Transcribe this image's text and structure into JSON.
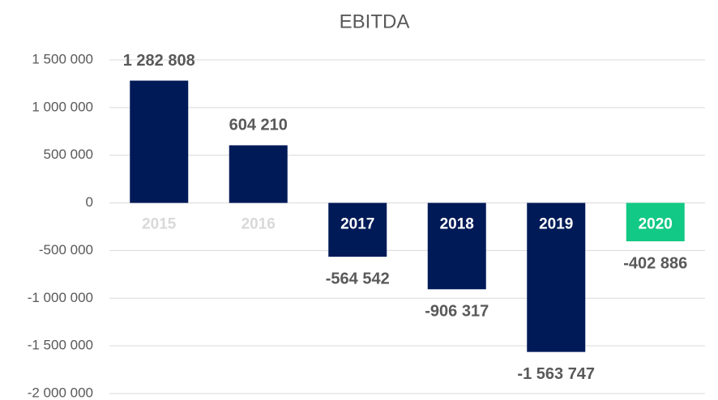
{
  "chart_data": {
    "type": "bar",
    "title": "EBITDA",
    "categories": [
      "2015",
      "2016",
      "2017",
      "2018",
      "2019",
      "2020"
    ],
    "values": [
      1282808,
      604210,
      -564542,
      -906317,
      -1563747,
      -402886
    ],
    "value_labels": [
      "1 282 808",
      "604 210",
      "-564 542",
      "-906 317",
      "-1 563 747",
      "-402 886"
    ],
    "colors": [
      "#001a57",
      "#001a57",
      "#001a57",
      "#001a57",
      "#001a57",
      "#12c985"
    ],
    "category_label_colors": [
      "#d9d9d9",
      "#d9d9d9",
      "#ffffff",
      "#ffffff",
      "#ffffff",
      "#ffffff"
    ],
    "ylim": [
      -2000000,
      1500000
    ],
    "yticks": [
      {
        "value": -2000000,
        "label": "-2 000 000"
      },
      {
        "value": -1500000,
        "label": "-1 500 000"
      },
      {
        "value": -1000000,
        "label": "-1 000 000"
      },
      {
        "value": -500000,
        "label": "-500 000"
      },
      0,
      {
        "value": 500000,
        "label": "500 000"
      },
      {
        "value": 1000000,
        "label": "1 000 000"
      },
      {
        "value": 1500000,
        "label": "1 500 000"
      }
    ],
    "grid": true
  }
}
